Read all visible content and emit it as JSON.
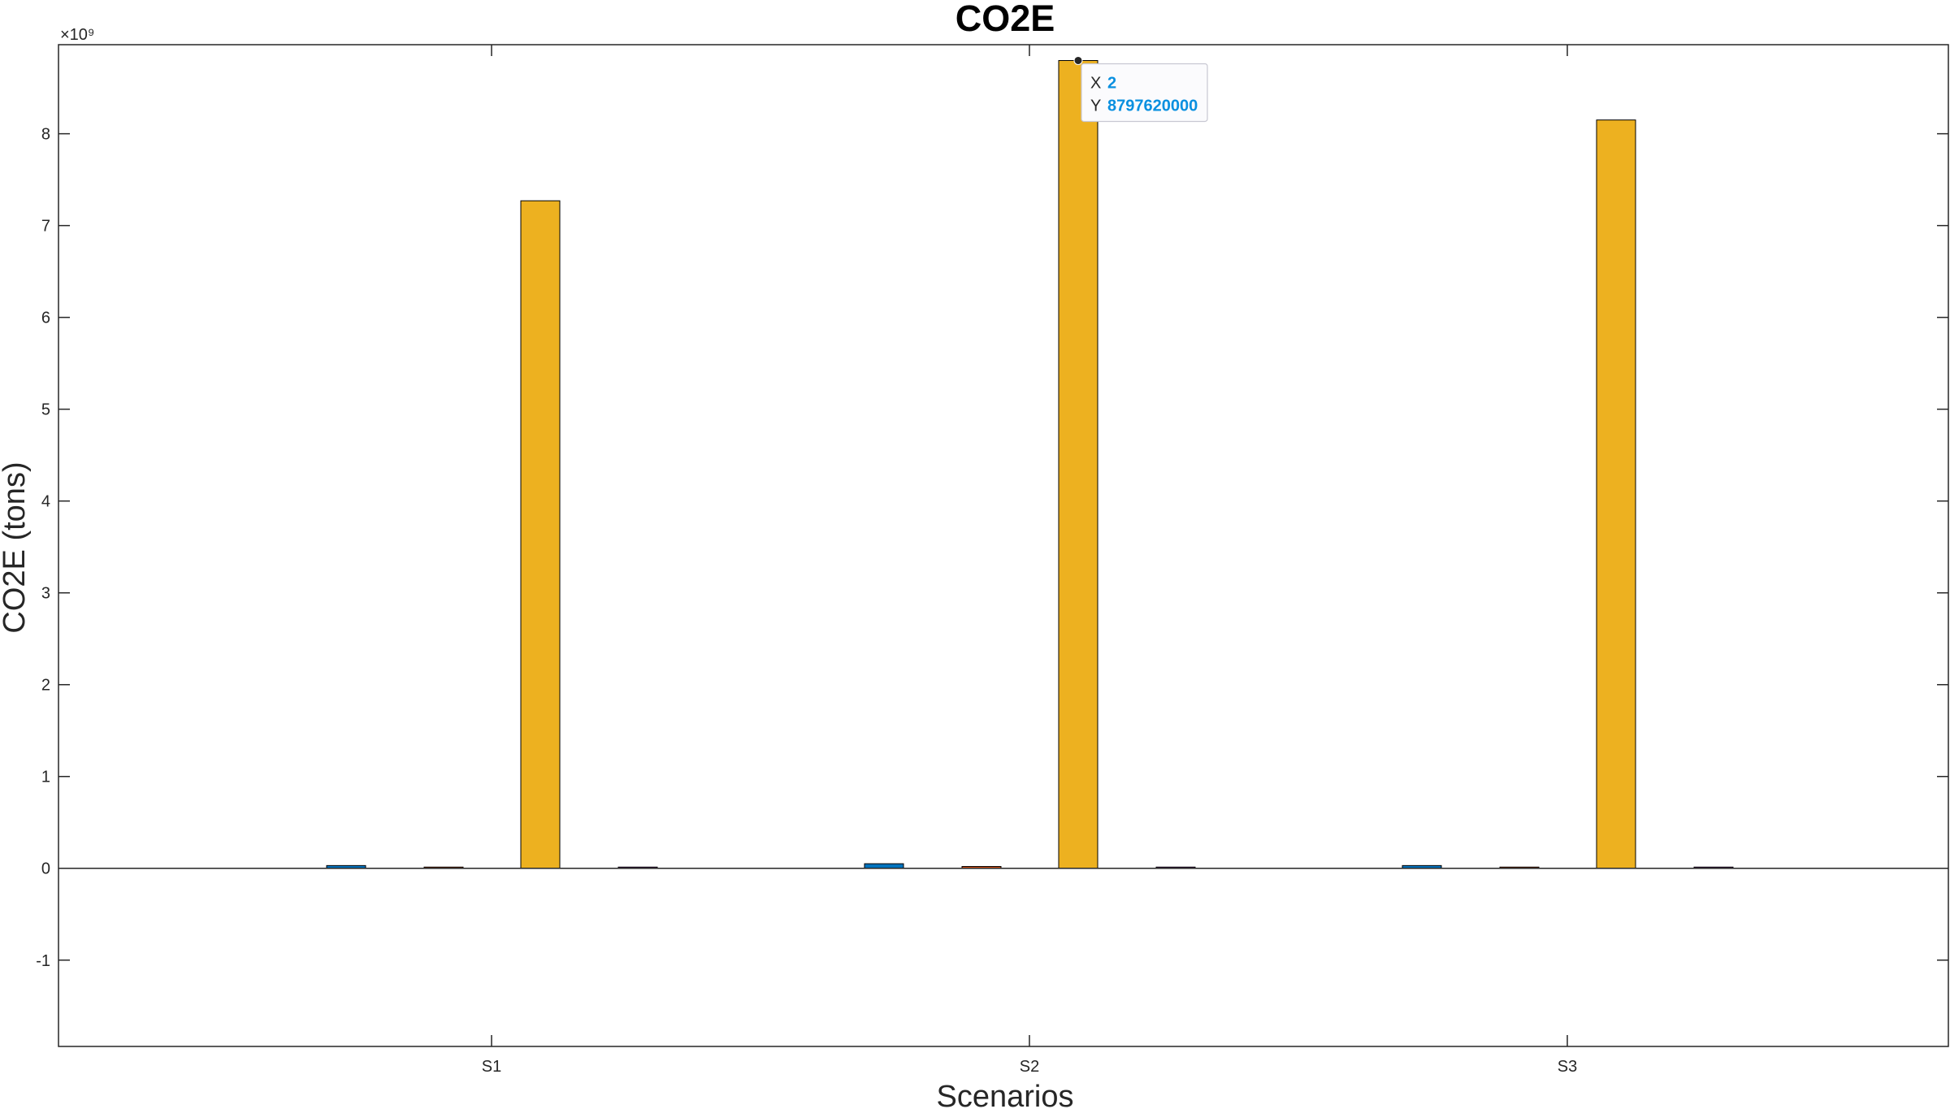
{
  "chart_data": {
    "type": "bar",
    "title": "CO2E",
    "xlabel": "Scenarios",
    "ylabel": "CO2E (tons)",
    "y_exponent_label": "×10⁹",
    "categories": [
      "S1",
      "S2",
      "S3"
    ],
    "series": [
      {
        "color": "#0072BD",
        "values": [
          30000000,
          50000000,
          30000000
        ]
      },
      {
        "color": "#D95319",
        "values": [
          10000000,
          20000000,
          10000000
        ]
      },
      {
        "color": "#EDB120",
        "values": [
          7270000000,
          8797620000,
          8150000000
        ]
      },
      {
        "color": "#7E2F8E",
        "values": [
          1000000,
          1000000,
          1000000
        ]
      }
    ],
    "ylim": [
      -1940000000,
      8970000000
    ],
    "yticks": [
      -1,
      0,
      1,
      2,
      3,
      4,
      5,
      6,
      7,
      8
    ],
    "ytick_multiplier": 1000000000,
    "grid": false,
    "legend": "none",
    "datatip": {
      "x_label": "X",
      "x_value": "2",
      "y_label": "Y",
      "y_value": "8797620000",
      "category_index": 1,
      "series_index": 2
    }
  }
}
